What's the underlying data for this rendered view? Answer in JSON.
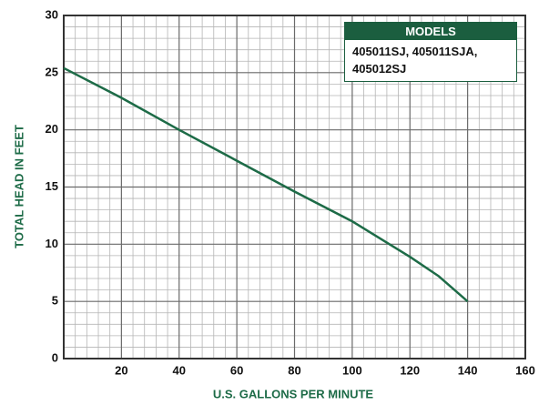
{
  "chart_data": {
    "type": "line",
    "x_label": "U.S. GALLONS PER MINUTE",
    "y_label": "TOTAL HEAD IN FEET",
    "legend_title": "MODELS",
    "legend": "top-right",
    "x": [
      0,
      20,
      40,
      60,
      80,
      100,
      120,
      130,
      140
    ],
    "series": [
      {
        "name": "405011SJ, 405011SJA, 405012SJ",
        "color": "#1d6b47",
        "values": [
          25.4,
          22.8,
          20,
          17.3,
          14.6,
          12,
          8.9,
          7.2,
          5
        ]
      }
    ],
    "xlim": [
      0,
      160
    ],
    "xticks": [
      20,
      40,
      60,
      80,
      100,
      120,
      140,
      160
    ],
    "ylim": [
      0,
      30
    ],
    "yticks": [
      0,
      5,
      10,
      15,
      20,
      25,
      30
    ],
    "grid": true
  }
}
